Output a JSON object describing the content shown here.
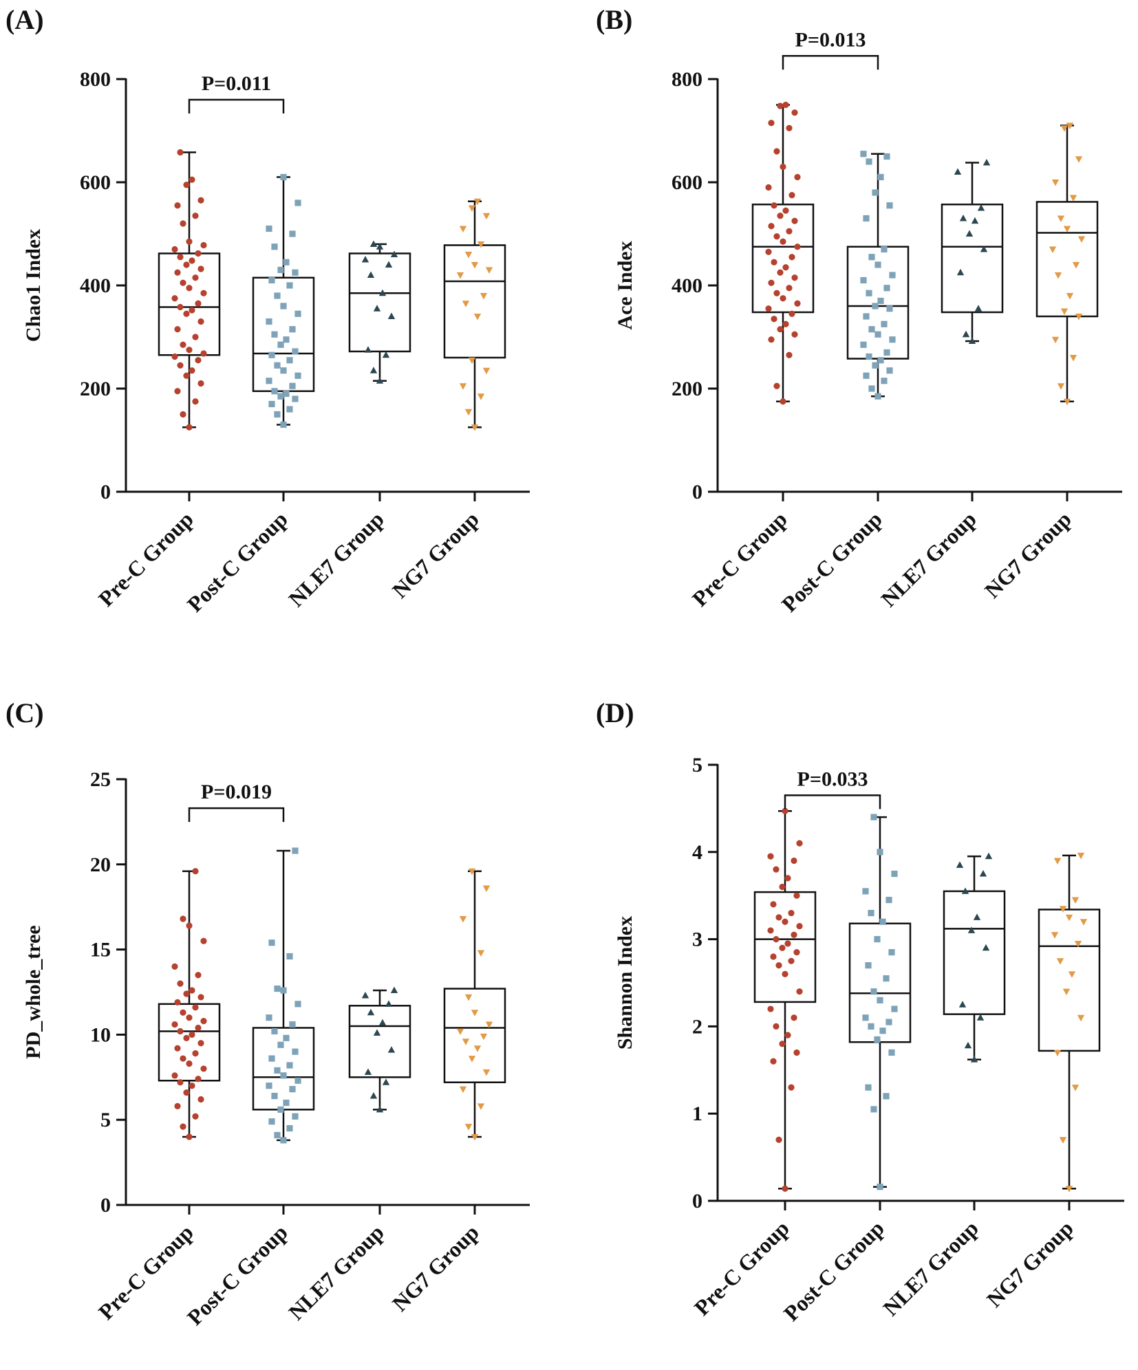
{
  "colors": {
    "pre": "#b5412e",
    "post": "#7ea3b8",
    "nle7": "#2c4752",
    "ng7": "#e29a45",
    "axis": "#111111"
  },
  "chart_data": [
    {
      "type": "box",
      "panel_label": "(A)",
      "ylabel": "Chao1 Index",
      "ylim": [
        0,
        800
      ],
      "yticks": [
        0,
        200,
        400,
        600,
        800
      ],
      "categories": [
        "Pre-C Group",
        "Post-C Group",
        "NLE7 Group",
        "NG7 Group"
      ],
      "boxes": [
        {
          "name": "Pre-C Group",
          "min": 125,
          "q1": 265,
          "median": 358,
          "q3": 462,
          "max": 658
        },
        {
          "name": "Post-C Group",
          "min": 130,
          "q1": 195,
          "median": 268,
          "q3": 415,
          "max": 610
        },
        {
          "name": "NLE7 Group",
          "min": 215,
          "q1": 272,
          "median": 385,
          "q3": 462,
          "max": 480
        },
        {
          "name": "NG7 Group",
          "min": 125,
          "q1": 260,
          "median": 408,
          "q3": 478,
          "max": 563
        }
      ],
      "points": [
        [
          125,
          150,
          175,
          195,
          210,
          225,
          235,
          245,
          255,
          262,
          268,
          275,
          285,
          300,
          315,
          330,
          345,
          352,
          358,
          365,
          375,
          385,
          395,
          405,
          415,
          425,
          432,
          440,
          448,
          455,
          462,
          470,
          478,
          485,
          520,
          535,
          555,
          565,
          595,
          605,
          658
        ],
        [
          130,
          150,
          160,
          170,
          180,
          185,
          190,
          195,
          205,
          215,
          225,
          235,
          245,
          255,
          265,
          272,
          285,
          295,
          305,
          315,
          330,
          345,
          360,
          380,
          400,
          410,
          425,
          430,
          445,
          475,
          500,
          510,
          560,
          610
        ],
        [
          215,
          235,
          265,
          275,
          340,
          355,
          385,
          420,
          440,
          450,
          460,
          475,
          480
        ],
        [
          125,
          155,
          185,
          205,
          235,
          255,
          340,
          365,
          380,
          420,
          430,
          440,
          460,
          480,
          510,
          535,
          550,
          563
        ]
      ],
      "significance": {
        "label": "P=0.011",
        "from": 0,
        "to": 1,
        "y": 760
      }
    },
    {
      "type": "box",
      "panel_label": "(B)",
      "ylabel": "Ace Index",
      "ylim": [
        0,
        800
      ],
      "yticks": [
        0,
        200,
        400,
        600,
        800
      ],
      "categories": [
        "Pre-C Group",
        "Post-C Group",
        "NLE7 Group",
        "NG7 Group"
      ],
      "boxes": [
        {
          "name": "Pre-C Group",
          "min": 175,
          "q1": 348,
          "median": 475,
          "q3": 557,
          "max": 750
        },
        {
          "name": "Post-C Group",
          "min": 185,
          "q1": 258,
          "median": 360,
          "q3": 475,
          "max": 655
        },
        {
          "name": "NLE7 Group",
          "min": 292,
          "q1": 348,
          "median": 475,
          "q3": 557,
          "max": 638
        },
        {
          "name": "NG7 Group",
          "min": 175,
          "q1": 340,
          "median": 502,
          "q3": 562,
          "max": 710
        }
      ],
      "points": [
        [
          175,
          205,
          265,
          295,
          305,
          315,
          325,
          335,
          345,
          355,
          365,
          375,
          385,
          395,
          405,
          415,
          425,
          435,
          445,
          455,
          465,
          475,
          485,
          495,
          505,
          515,
          525,
          535,
          545,
          555,
          575,
          590,
          610,
          630,
          660,
          705,
          715,
          735,
          748,
          750
        ],
        [
          185,
          200,
          215,
          225,
          235,
          245,
          255,
          262,
          270,
          285,
          295,
          305,
          315,
          325,
          340,
          355,
          360,
          370,
          385,
          395,
          410,
          420,
          440,
          455,
          470,
          530,
          555,
          580,
          610,
          640,
          650,
          655
        ],
        [
          292,
          305,
          355,
          425,
          470,
          500,
          525,
          530,
          550,
          620,
          638
        ],
        [
          175,
          205,
          260,
          295,
          340,
          350,
          380,
          420,
          440,
          470,
          490,
          510,
          530,
          570,
          600,
          645,
          705,
          710
        ]
      ],
      "significance": {
        "label": "P=0.013",
        "from": 0,
        "to": 1,
        "y": 845
      }
    },
    {
      "type": "box",
      "panel_label": "(C)",
      "ylabel": "PD_whole_tree",
      "ylim": [
        0,
        25
      ],
      "yticks": [
        0,
        5,
        10,
        15,
        20,
        25
      ],
      "categories": [
        "Pre-C Group",
        "Post-C Group",
        "NLE7 Group",
        "NG7 Group"
      ],
      "boxes": [
        {
          "name": "Pre-C Group",
          "min": 4.0,
          "q1": 7.3,
          "median": 10.2,
          "q3": 11.8,
          "max": 19.6
        },
        {
          "name": "Post-C Group",
          "min": 3.8,
          "q1": 5.6,
          "median": 7.5,
          "q3": 10.4,
          "max": 20.8
        },
        {
          "name": "NLE7 Group",
          "min": 5.6,
          "q1": 7.5,
          "median": 10.5,
          "q3": 11.7,
          "max": 12.6
        },
        {
          "name": "NG7 Group",
          "min": 4.0,
          "q1": 7.2,
          "median": 10.4,
          "q3": 12.7,
          "max": 19.6
        }
      ],
      "points": [
        [
          4.0,
          4.6,
          5.2,
          5.8,
          6.2,
          6.6,
          7.0,
          7.2,
          7.4,
          7.6,
          8.0,
          8.3,
          8.6,
          8.9,
          9.2,
          9.5,
          9.8,
          10.0,
          10.2,
          10.4,
          10.6,
          10.8,
          11.0,
          11.3,
          11.6,
          11.9,
          12.2,
          12.4,
          12.6,
          13.0,
          13.5,
          14.0,
          15.5,
          16.4,
          16.8,
          19.6
        ],
        [
          3.8,
          4.1,
          4.5,
          4.9,
          5.2,
          5.6,
          6.0,
          6.4,
          6.8,
          7.0,
          7.3,
          7.6,
          7.9,
          8.2,
          8.6,
          9.0,
          9.4,
          9.8,
          10.2,
          10.6,
          11.0,
          11.8,
          12.6,
          12.7,
          14.6,
          15.4,
          20.8
        ],
        [
          5.6,
          6.4,
          7.2,
          7.8,
          9.1,
          10.1,
          10.7,
          11.3,
          11.8,
          12.3,
          12.6
        ],
        [
          4.0,
          4.6,
          5.8,
          6.8,
          7.8,
          8.6,
          9.2,
          9.6,
          9.9,
          10.2,
          10.6,
          11.3,
          12.2,
          14.8,
          16.8,
          18.6,
          19.6
        ]
      ],
      "significance": {
        "label": "P=0.019",
        "from": 0,
        "to": 1,
        "y": 23.3
      }
    },
    {
      "type": "box",
      "panel_label": "(D)",
      "ylabel": "Shannon Index",
      "ylim": [
        0,
        5
      ],
      "yticks": [
        0,
        1,
        2,
        3,
        4,
        5
      ],
      "categories": [
        "Pre-C Group",
        "Post-C Group",
        "NLE7 Group",
        "NG7 Group"
      ],
      "boxes": [
        {
          "name": "Pre-C Group",
          "min": 0.14,
          "q1": 2.28,
          "median": 3.0,
          "q3": 3.54,
          "max": 4.47
        },
        {
          "name": "Post-C Group",
          "min": 0.16,
          "q1": 1.82,
          "median": 2.38,
          "q3": 3.18,
          "max": 4.4
        },
        {
          "name": "NLE7 Group",
          "min": 1.62,
          "q1": 2.14,
          "median": 3.12,
          "q3": 3.55,
          "max": 3.95
        },
        {
          "name": "NG7 Group",
          "min": 0.14,
          "q1": 1.72,
          "median": 2.92,
          "q3": 3.34,
          "max": 3.96
        }
      ],
      "points": [
        [
          0.14,
          0.7,
          1.3,
          1.6,
          1.7,
          1.8,
          1.9,
          2.0,
          2.1,
          2.2,
          2.4,
          2.6,
          2.7,
          2.75,
          2.8,
          2.85,
          2.9,
          2.95,
          3.0,
          3.05,
          3.1,
          3.15,
          3.2,
          3.25,
          3.3,
          3.4,
          3.5,
          3.6,
          3.7,
          3.8,
          3.9,
          3.95,
          4.1,
          4.47
        ],
        [
          0.16,
          1.05,
          1.2,
          1.3,
          1.7,
          1.85,
          1.95,
          2.0,
          2.05,
          2.1,
          2.2,
          2.3,
          2.4,
          2.55,
          2.7,
          2.85,
          3.0,
          3.2,
          3.3,
          3.45,
          3.55,
          3.75,
          4.0,
          4.4
        ],
        [
          1.62,
          1.78,
          2.1,
          2.25,
          2.9,
          3.1,
          3.25,
          3.55,
          3.75,
          3.85,
          3.95
        ],
        [
          0.14,
          0.7,
          1.3,
          1.7,
          2.1,
          2.4,
          2.6,
          2.75,
          2.95,
          3.05,
          3.2,
          3.25,
          3.35,
          3.45,
          3.9,
          3.96
        ]
      ],
      "significance": {
        "label": "P=0.033",
        "from": 0,
        "to": 1,
        "y": 4.65
      }
    }
  ]
}
